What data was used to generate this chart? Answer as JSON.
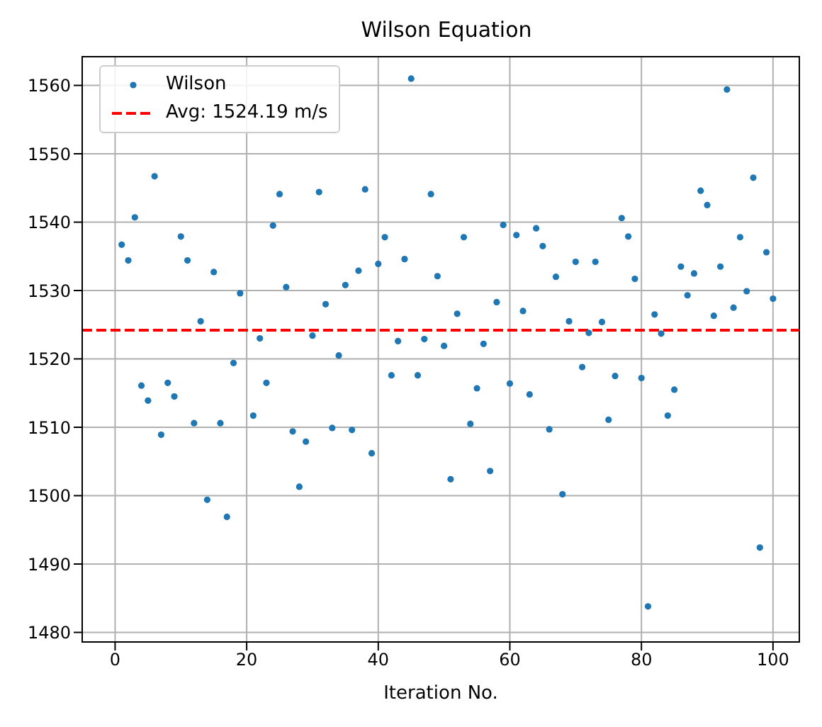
{
  "chart_data": {
    "type": "scatter",
    "title": "Wilson Equation",
    "xlabel": "Iteration No.",
    "x": [
      1,
      2,
      3,
      4,
      5,
      6,
      7,
      8,
      9,
      10,
      11,
      12,
      13,
      14,
      15,
      16,
      17,
      18,
      19,
      20,
      21,
      22,
      23,
      24,
      25,
      26,
      27,
      28,
      29,
      30,
      31,
      32,
      33,
      34,
      35,
      36,
      37,
      38,
      39,
      40,
      41,
      42,
      43,
      44,
      45,
      46,
      47,
      48,
      49,
      50,
      51,
      52,
      53,
      54,
      55,
      56,
      57,
      58,
      59,
      60,
      61,
      62,
      63,
      64,
      65,
      66,
      67,
      68,
      69,
      70,
      71,
      72,
      73,
      74,
      75,
      76,
      77,
      78,
      79,
      80,
      81,
      82,
      83,
      84,
      85,
      86,
      87,
      88,
      89,
      90,
      91,
      92,
      93,
      94,
      95,
      96,
      97,
      98,
      99,
      100
    ],
    "series": [
      {
        "name": "Wilson",
        "color": "#1f77b4",
        "values": [
          1536.7,
          1534.4,
          1540.7,
          1516.1,
          1513.9,
          1546.7,
          1508.9,
          1516.5,
          1514.5,
          1537.9,
          1534.4,
          1510.6,
          1525.5,
          1499.4,
          1532.7,
          1510.6,
          1496.9,
          1519.4,
          1529.6,
          null,
          1511.7,
          1523,
          1516.5,
          1539.5,
          1544.1,
          1530.5,
          1509.4,
          1501.3,
          1507.9,
          1523.4,
          1544.4,
          1528,
          1509.9,
          1520.5,
          1530.8,
          1509.6,
          1532.9,
          1544.8,
          1506.2,
          1533.9,
          1537.8,
          1517.6,
          1522.6,
          1534.6,
          1561,
          1517.6,
          1522.9,
          1544.1,
          1532.1,
          1521.9,
          1502.4,
          1526.6,
          1537.8,
          1510.5,
          1515.7,
          1522.2,
          1503.6,
          1528.3,
          1539.6,
          1516.4,
          1538.1,
          1527,
          1514.8,
          1539.1,
          1536.5,
          1509.7,
          1532,
          1500.2,
          1525.5,
          1534.2,
          1518.8,
          1523.8,
          1534.2,
          1525.4,
          1511.1,
          1517.5,
          1540.6,
          1537.9,
          1531.7,
          1517.2,
          1483.8,
          1526.5,
          1523.7,
          1511.7,
          1515.5,
          1533.5,
          1529.3,
          1532.5,
          1544.6,
          1542.5,
          1526.3,
          1533.5,
          1559.4,
          1527.5,
          1537.8,
          1529.9,
          1546.5,
          1492.4,
          1535.6,
          1528.8
        ]
      }
    ],
    "ref_lines": [
      {
        "axis": "y",
        "value": 1524.19,
        "label": "Avg: 1524.19 m/s",
        "color": "#ff0000",
        "line_style": "dashed"
      }
    ],
    "xlim": [
      -5,
      104
    ],
    "xticks": [
      0,
      20,
      40,
      60,
      80,
      100
    ],
    "ylim": [
      1478.6,
      1564.2
    ],
    "yticks": [
      1480,
      1490,
      1500,
      1510,
      1520,
      1530,
      1540,
      1550,
      1560
    ],
    "grid": true,
    "legend": "top left",
    "marker": "circle"
  }
}
